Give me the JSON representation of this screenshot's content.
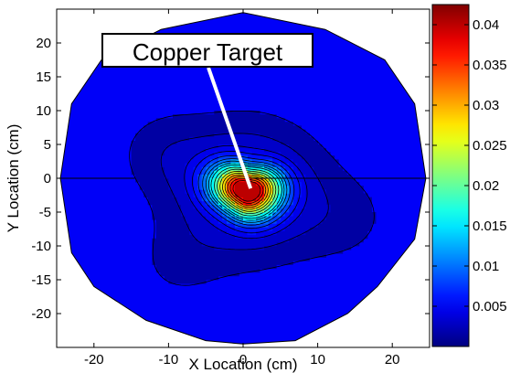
{
  "chart_data": {
    "type": "contour",
    "xlabel": "X Location (cm)",
    "ylabel": "Y Location (cm)",
    "xlim": [
      -25,
      25
    ],
    "ylim": [
      -25,
      25
    ],
    "xticks": [
      -20,
      -10,
      0,
      10,
      20
    ],
    "yticks": [
      -20,
      -15,
      -10,
      -5,
      0,
      5,
      10,
      15,
      20
    ],
    "colorbar": {
      "colormap": "jet",
      "clim": [
        0,
        0.0425
      ],
      "ticks": [
        0.005,
        0.01,
        0.015,
        0.02,
        0.025,
        0.03,
        0.035,
        0.04
      ],
      "tick_labels": [
        "0.005",
        "0.01",
        "0.015",
        "0.02",
        "0.025",
        "0.03",
        "0.035",
        "0.04"
      ]
    },
    "levels": [
      0.0015,
      0.003,
      0.0045,
      0.006,
      0.008,
      0.01,
      0.012,
      0.014,
      0.016,
      0.019,
      0.022,
      0.025,
      0.028,
      0.031,
      0.034,
      0.037,
      0.04
    ],
    "boundary": [
      [
        0,
        24.5
      ],
      [
        -11,
        22
      ],
      [
        -19,
        17.5
      ],
      [
        -23,
        11
      ],
      [
        -24.5,
        0
      ],
      [
        -23,
        -11
      ],
      [
        -20,
        -16
      ],
      [
        -13,
        -21
      ],
      [
        -5,
        -24
      ],
      [
        0,
        -24.5
      ],
      [
        7,
        -24
      ],
      [
        14,
        -20
      ],
      [
        18,
        -16
      ],
      [
        23,
        -9
      ],
      [
        24.5,
        0
      ],
      [
        23,
        11
      ],
      [
        19,
        17.5
      ],
      [
        11,
        22
      ]
    ],
    "peak": {
      "x": 0.5,
      "y": -1.8,
      "value": 0.042
    },
    "annotation": {
      "text": "Copper Target",
      "points_to": [
        1,
        -1.5
      ]
    }
  }
}
